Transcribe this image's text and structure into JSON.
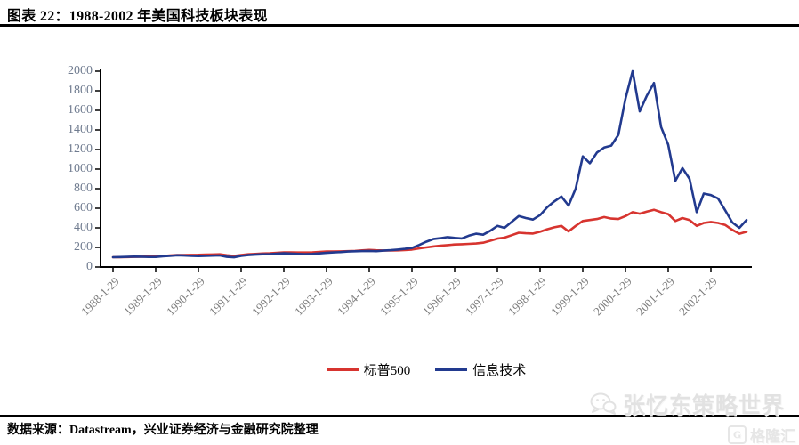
{
  "header": {
    "title": "图表 22：1988-2002 年美国科技板块表现"
  },
  "footer": {
    "source": "数据来源：Datastream，兴业证券经济与金融研究院整理"
  },
  "watermark": {
    "text": "张忆东策略世界",
    "logo_text": "格隆汇"
  },
  "colors": {
    "sp500": "#d7342f",
    "it": "#223a8f",
    "axis": "#000000",
    "y_label": "#6f7b8f",
    "x_label": "#7d7d7d"
  },
  "chart_data": {
    "type": "line",
    "title": "1988-2002 年美国科技板块表现",
    "x_start": "1988-01",
    "x_step_months": 2,
    "x_tick_labels": [
      "1988-1-29",
      "1989-1-29",
      "1990-1-29",
      "1991-1-29",
      "1992-1-29",
      "1993-1-29",
      "1994-1-29",
      "1995-1-29",
      "1996-1-29",
      "1997-1-29",
      "1998-1-29",
      "1999-1-29",
      "2000-1-29",
      "2001-1-29",
      "2002-1-29"
    ],
    "y_ticks": [
      0,
      200,
      400,
      600,
      800,
      1000,
      1200,
      1400,
      1600,
      1800,
      2000
    ],
    "ylim": [
      0,
      2000
    ],
    "grid": false,
    "legend_position": "bottom",
    "series": [
      {
        "name": "标普500",
        "color": "#d7342f",
        "values": [
          100,
          101,
          102,
          104,
          105,
          107,
          108,
          112,
          117,
          122,
          123,
          124,
          125,
          127,
          128,
          130,
          120,
          114,
          122,
          130,
          134,
          138,
          140,
          145,
          150,
          149,
          148,
          148,
          150,
          154,
          158,
          159,
          160,
          162,
          165,
          170,
          175,
          171,
          169,
          168,
          170,
          174,
          178,
          190,
          200,
          210,
          218,
          224,
          230,
          233,
          236,
          240,
          248,
          268,
          290,
          300,
          325,
          350,
          345,
          342,
          360,
          385,
          405,
          420,
          364,
          420,
          470,
          480,
          490,
          510,
          495,
          490,
          520,
          560,
          545,
          565,
          585,
          560,
          540,
          470,
          500,
          480,
          420,
          450,
          460,
          450,
          430,
          380,
          340,
          360
        ]
      },
      {
        "name": "信息技术",
        "color": "#223a8f",
        "values": [
          100,
          102,
          104,
          106,
          105,
          103,
          103,
          109,
          114,
          120,
          117,
          114,
          112,
          114,
          116,
          118,
          104,
          99,
          114,
          122,
          126,
          130,
          132,
          135,
          140,
          137,
          134,
          131,
          134,
          139,
          145,
          149,
          153,
          158,
          161,
          163,
          165,
          162,
          167,
          172,
          178,
          185,
          195,
          225,
          258,
          285,
          295,
          305,
          297,
          292,
          320,
          340,
          330,
          370,
          420,
          400,
          460,
          520,
          500,
          485,
          530,
          610,
          670,
          720,
          627,
          800,
          1130,
          1060,
          1170,
          1220,
          1240,
          1350,
          1720,
          2000,
          1590,
          1750,
          1880,
          1430,
          1250,
          880,
          1010,
          900,
          560,
          750,
          735,
          700,
          580,
          455,
          400,
          480
        ]
      }
    ]
  }
}
